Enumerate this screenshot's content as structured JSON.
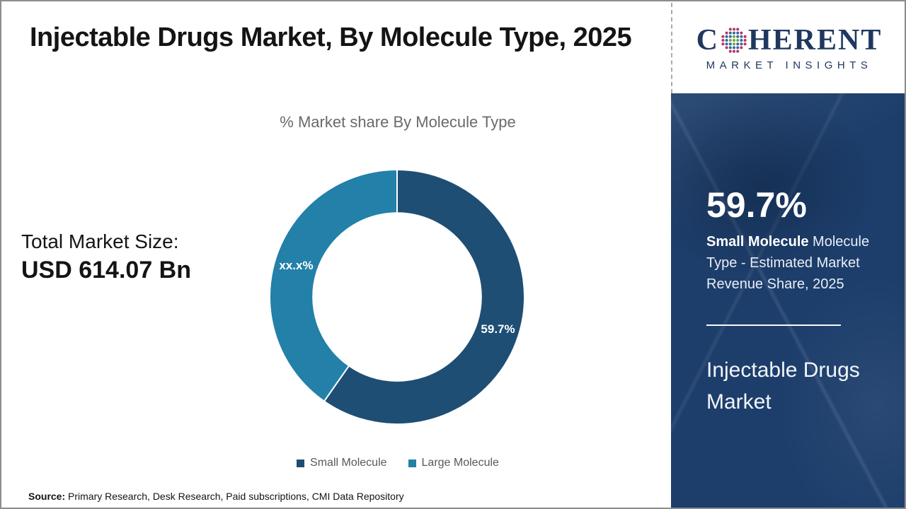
{
  "page": {
    "title": "Injectable Drugs Market, By Molecule Type, 2025",
    "source_label": "Source:",
    "source_text": " Primary Research, Desk Research, Paid subscriptions, CMI Data Repository"
  },
  "logo": {
    "word_start": "C",
    "word_end": "HERENT",
    "subtitle": "MARKET INSIGHTS",
    "brand_color": "#1f3860",
    "globe_icon": "dotted-globe"
  },
  "left_stat": {
    "label": "Total Market Size:",
    "value": "USD 614.07 Bn"
  },
  "chart_data": {
    "type": "pie",
    "donut": true,
    "title": "% Market share By Molecule Type",
    "categories": [
      "Small Molecule",
      "Large Molecule"
    ],
    "values": [
      59.7,
      40.3
    ],
    "slice_labels": [
      "59.7%",
      "xx.x%"
    ],
    "colors": [
      "#1e4e74",
      "#2380a8"
    ],
    "start_angle_deg": 0,
    "direction": "clockwise",
    "legend_position": "bottom",
    "inner_radius_ratio": 0.66
  },
  "side_panel": {
    "stat_value": "59.7%",
    "stat_bold": "Small Molecule",
    "stat_rest": " Molecule Type - Estimated Market Revenue Share, 2025",
    "panel_title": "Injectable Drugs Market",
    "background_color": "#1d3e6b"
  }
}
